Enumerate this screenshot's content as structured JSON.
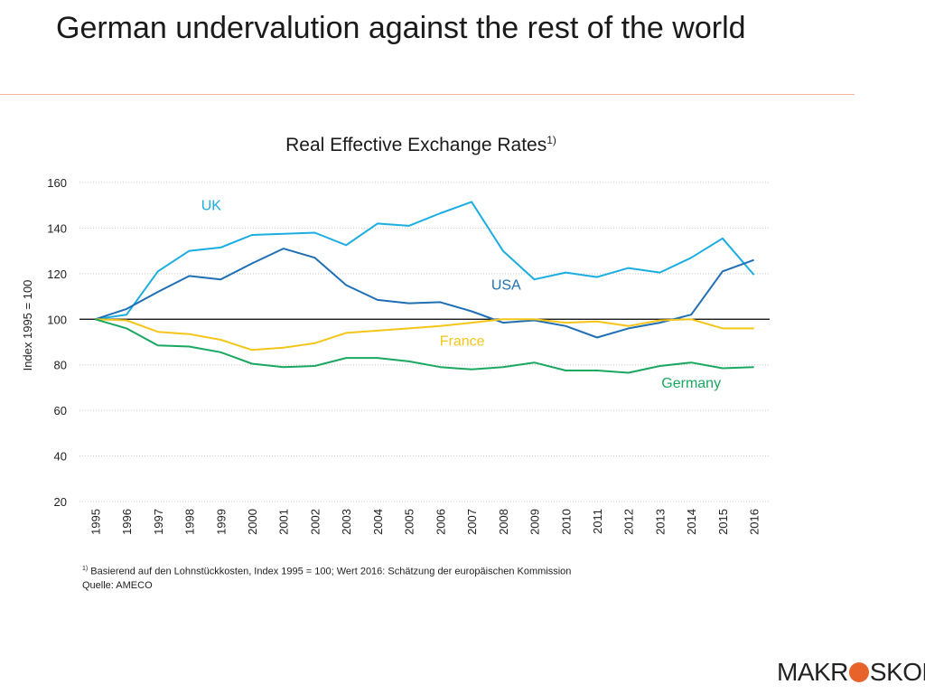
{
  "slide": {
    "title": "German undervalution against the rest of the world"
  },
  "chart_data": {
    "type": "line",
    "title": "Real Effective Exchange Rates",
    "title_sup": "1)",
    "xlabel": "",
    "ylabel": "Index 1995 = 100",
    "ylim": [
      20,
      160
    ],
    "yticks": [
      20,
      40,
      60,
      80,
      100,
      120,
      140,
      160
    ],
    "grid": true,
    "reference_line": 100,
    "categories": [
      "1995",
      "1996",
      "1997",
      "1998",
      "1999",
      "2000",
      "2001",
      "2002",
      "2003",
      "2004",
      "2005",
      "2006",
      "2007",
      "2008",
      "2009",
      "2010",
      "2011",
      "2012",
      "2013",
      "2014",
      "2015",
      "2016"
    ],
    "series": [
      {
        "name": "UK",
        "color": "#1aaee0",
        "values": [
          100,
          102,
          121,
          130,
          131.5,
          137,
          137.5,
          138,
          132.5,
          142,
          141,
          146.5,
          151.5,
          130,
          117.5,
          120.5,
          118.5,
          122.5,
          120.5,
          127,
          135.5,
          119.5
        ],
        "label_at": [
          1998.7,
          148
        ]
      },
      {
        "name": "USA",
        "color": "#1f6fb4",
        "values": [
          100,
          104.5,
          112,
          119,
          117.5,
          124.5,
          131,
          127,
          115,
          108.5,
          107,
          107.5,
          103.5,
          98.5,
          99.5,
          97,
          92,
          96,
          98.5,
          102,
          121,
          126
        ],
        "label_at": [
          2008.1,
          113
        ]
      },
      {
        "name": "France",
        "color": "#f5c518",
        "values": [
          100,
          99.5,
          94.5,
          93.5,
          91,
          86.5,
          87.5,
          89.5,
          94,
          95,
          96,
          97,
          98.5,
          100,
          100,
          98.5,
          99,
          97,
          99.5,
          100,
          96,
          96
        ],
        "label_at": [
          2006.7,
          88.5
        ]
      },
      {
        "name": "Germany",
        "color": "#1aa860",
        "values": [
          100,
          96,
          88.5,
          88,
          85.5,
          80.5,
          79,
          79.5,
          83,
          83,
          81.5,
          79,
          78,
          79,
          81,
          77.5,
          77.5,
          76.5,
          79.5,
          81,
          78.5,
          79
        ],
        "label_at": [
          2014,
          70
        ]
      }
    ]
  },
  "footnote": {
    "sup": "1)",
    "line1": "Basierend auf den Lohnstückkosten, Index 1995 = 100; Wert 2016: Schätzung der europäischen Kommission",
    "line2": "Quelle: AMECO"
  },
  "logo": {
    "left": "MAKR",
    "right": "SKOP",
    "dot_color": "#e8632a"
  }
}
